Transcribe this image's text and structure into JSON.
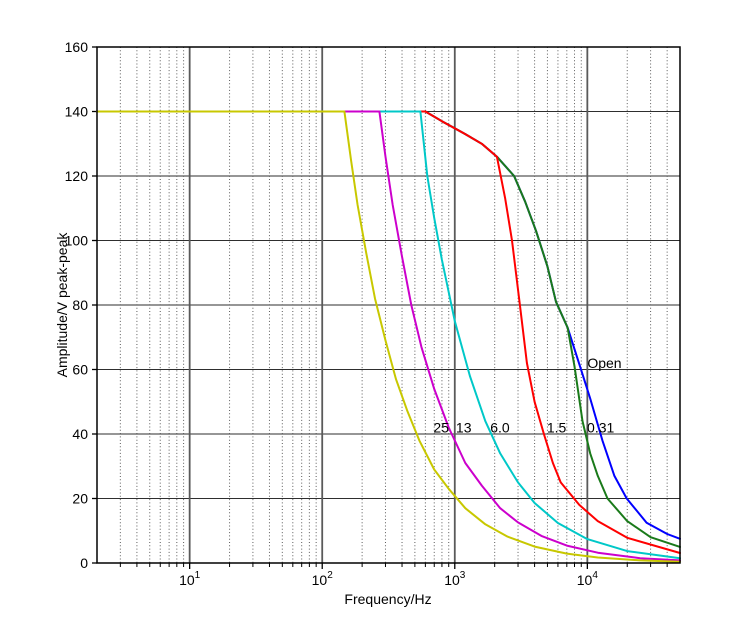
{
  "chart_data": {
    "type": "line",
    "title": "",
    "xlabel": "Frequency/Hz",
    "ylabel": "Amplitude/V peak-peak",
    "x_scale": "log",
    "xlim": [
      2,
      50000
    ],
    "ylim": [
      0,
      160
    ],
    "x_tick_base": "10",
    "x_tick_exponents": [
      1,
      2,
      3,
      4
    ],
    "y_ticks": [
      0,
      20,
      40,
      60,
      80,
      100,
      120,
      140,
      160
    ],
    "grid": {
      "h_major": "solid",
      "v_major": "solid",
      "v_minor": "dotted"
    },
    "legend_position": "inline-labels",
    "colors": {
      "axis": "#000000",
      "grid_major_h": "#2e2e2e",
      "grid_major_v": "#5a5a5a",
      "grid_minor": "#3f3f3f"
    },
    "series": [
      {
        "name": "Open",
        "color": "#0000ff",
        "label": {
          "text": "Open",
          "f": 10000,
          "v": 62
        },
        "points": [
          [
            2,
            140
          ],
          [
            600,
            140
          ],
          [
            800,
            137
          ],
          [
            1200,
            133
          ],
          [
            1600,
            130
          ],
          [
            2080,
            126
          ],
          [
            2800,
            120
          ],
          [
            3400,
            112
          ],
          [
            4100,
            103
          ],
          [
            5000,
            92
          ],
          [
            5800,
            81
          ],
          [
            7100,
            73
          ],
          [
            8800,
            61
          ],
          [
            10500,
            51
          ],
          [
            13000,
            38
          ],
          [
            16000,
            27
          ],
          [
            19800,
            20
          ],
          [
            28000,
            12.5
          ],
          [
            40000,
            9
          ],
          [
            50000,
            7.5
          ]
        ]
      },
      {
        "name": "0.31",
        "color": "#1a7a1a",
        "label": {
          "text": "0.31",
          "f": 9950,
          "v": 42
        },
        "points": [
          [
            2,
            140
          ],
          [
            600,
            140
          ],
          [
            800,
            137
          ],
          [
            1200,
            133
          ],
          [
            1600,
            130
          ],
          [
            2080,
            126
          ],
          [
            2800,
            120
          ],
          [
            3400,
            112
          ],
          [
            4100,
            103
          ],
          [
            5000,
            92
          ],
          [
            5800,
            81
          ],
          [
            7100,
            73
          ],
          [
            8000,
            61
          ],
          [
            9200,
            44
          ],
          [
            10500,
            34
          ],
          [
            12000,
            27
          ],
          [
            14200,
            20
          ],
          [
            20000,
            13
          ],
          [
            30000,
            8
          ],
          [
            50000,
            5
          ]
        ]
      },
      {
        "name": "1.5",
        "color": "#ff0000",
        "label": {
          "text": "1.5",
          "f": 4950,
          "v": 42
        },
        "points": [
          [
            2,
            140
          ],
          [
            600,
            140
          ],
          [
            800,
            137
          ],
          [
            1200,
            133
          ],
          [
            1600,
            130
          ],
          [
            2080,
            126
          ],
          [
            2400,
            113
          ],
          [
            2700,
            100
          ],
          [
            3100,
            80
          ],
          [
            3500,
            62
          ],
          [
            4000,
            50
          ],
          [
            4700,
            40
          ],
          [
            5500,
            31
          ],
          [
            6300,
            25
          ],
          [
            8700,
            18
          ],
          [
            12000,
            13
          ],
          [
            20000,
            7.8
          ],
          [
            50000,
            3.1
          ]
        ]
      },
      {
        "name": "6.0",
        "color": "#00c8c8",
        "label": {
          "text": "6.0",
          "f": 1850,
          "v": 42
        },
        "points": [
          [
            2,
            140
          ],
          [
            550,
            140
          ],
          [
            620,
            120
          ],
          [
            700,
            107
          ],
          [
            800,
            94
          ],
          [
            1000,
            75
          ],
          [
            1300,
            58
          ],
          [
            1700,
            44
          ],
          [
            2200,
            34
          ],
          [
            3000,
            25
          ],
          [
            4000,
            18.6
          ],
          [
            6000,
            12.4
          ],
          [
            10000,
            7.4
          ],
          [
            20000,
            3.7
          ],
          [
            50000,
            1.5
          ]
        ]
      },
      {
        "name": "13",
        "color": "#cc00cc",
        "label": {
          "text": "13",
          "f": 1020,
          "v": 42
        },
        "points": [
          [
            2,
            140
          ],
          [
            270,
            140
          ],
          [
            300,
            126
          ],
          [
            340,
            111
          ],
          [
            400,
            95
          ],
          [
            470,
            80
          ],
          [
            560,
            67
          ],
          [
            700,
            54
          ],
          [
            900,
            42
          ],
          [
            1200,
            31
          ],
          [
            1600,
            24
          ],
          [
            2200,
            17
          ],
          [
            3000,
            12.6
          ],
          [
            4500,
            8.4
          ],
          [
            7000,
            5.4
          ],
          [
            12000,
            3.2
          ],
          [
            25000,
            1.5
          ],
          [
            50000,
            0.8
          ]
        ]
      },
      {
        "name": "25",
        "color": "#c8c800",
        "label": {
          "text": "25",
          "f": 690,
          "v": 42
        },
        "points": [
          [
            2,
            140
          ],
          [
            147,
            140
          ],
          [
            165,
            125
          ],
          [
            185,
            111
          ],
          [
            215,
            96
          ],
          [
            250,
            82
          ],
          [
            300,
            69
          ],
          [
            360,
            57
          ],
          [
            440,
            47
          ],
          [
            540,
            38
          ],
          [
            700,
            29
          ],
          [
            900,
            23
          ],
          [
            1200,
            17
          ],
          [
            1700,
            12
          ],
          [
            2500,
            8.2
          ],
          [
            4000,
            5.1
          ],
          [
            7000,
            2.9
          ],
          [
            12000,
            1.7
          ],
          [
            25000,
            0.8
          ],
          [
            50000,
            0.4
          ]
        ]
      }
    ]
  }
}
